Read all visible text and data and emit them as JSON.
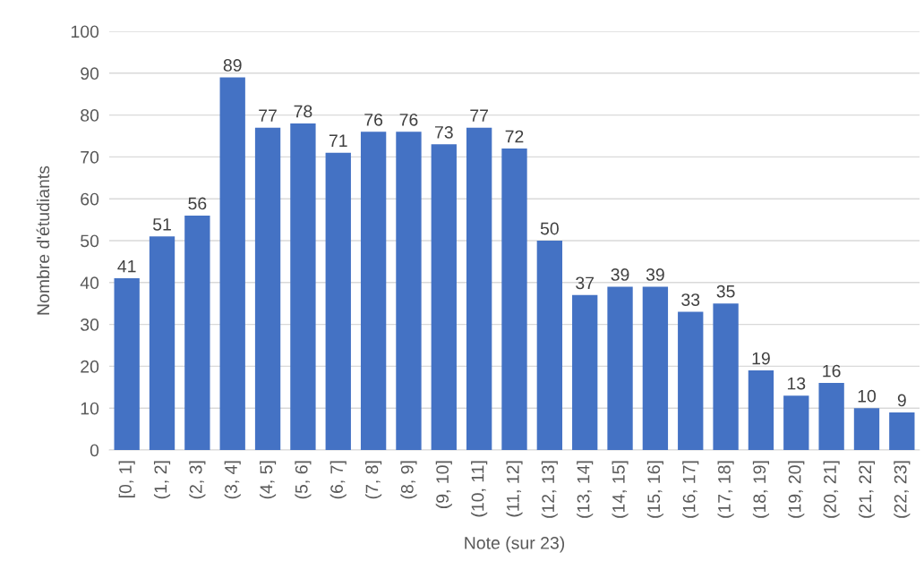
{
  "chart_data": {
    "type": "bar",
    "xlabel": "Note (sur 23)",
    "ylabel": "Nombre d'étudiants",
    "categories": [
      "[0, 1]",
      "(1, 2]",
      "(2, 3]",
      "(3, 4]",
      "(4, 5]",
      "(5, 6]",
      "(6, 7]",
      "(7, 8]",
      "(8, 9]",
      "(9, 10]",
      "(10, 11]",
      "(11, 12]",
      "(12, 13]",
      "(13, 14]",
      "(14, 15]",
      "(15, 16]",
      "(16, 17]",
      "(17, 18]",
      "(18, 19]",
      "(19, 20]",
      "(20, 21]",
      "(21, 22]",
      "(22, 23]"
    ],
    "values": [
      41,
      51,
      56,
      89,
      77,
      78,
      71,
      76,
      76,
      73,
      77,
      72,
      50,
      37,
      39,
      39,
      33,
      35,
      19,
      13,
      16,
      10,
      9
    ],
    "color": "#4472c4",
    "ylim": [
      0,
      100
    ],
    "yticks": [
      0,
      10,
      20,
      30,
      40,
      50,
      60,
      70,
      80,
      90,
      100
    ],
    "grid": "y",
    "data_labels": true
  }
}
